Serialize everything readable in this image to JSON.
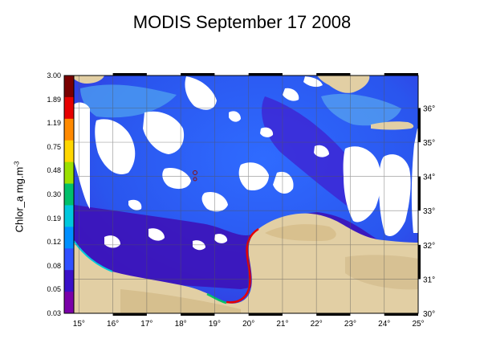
{
  "title": "MODIS September 17 2008",
  "colorbar": {
    "label": "Chlor_a mg.m",
    "label_exponent": "-3",
    "ticks": [
      "3.00",
      "1.89",
      "1.19",
      "0.75",
      "0.48",
      "0.30",
      "0.19",
      "0.12",
      "0.08",
      "0.05",
      "0.03"
    ],
    "colors": [
      "#7a0000",
      "#e60000",
      "#ff8a00",
      "#ffd700",
      "#9be000",
      "#00c06a",
      "#00c8dd",
      "#0090ff",
      "#3050ff",
      "#3a10c8",
      "#7a00a8"
    ]
  },
  "map": {
    "lon_labels": [
      "15",
      "16",
      "17",
      "18",
      "19",
      "20",
      "21",
      "22",
      "23",
      "24",
      "25"
    ],
    "lat_labels": [
      "36",
      "35",
      "34",
      "33",
      "32",
      "31",
      "30"
    ],
    "lon_range": [
      14.85,
      25.0
    ],
    "lat_range": [
      30.0,
      36.95
    ],
    "degree_symbol": "°",
    "colors": {
      "land": "#e2cfa4",
      "land_dark": "#c9ad75",
      "sea_low": "#3a10c8",
      "sea_mid": "#2f6bff",
      "sea_light": "#57a6f0",
      "coastal_high": "#e60000",
      "cloud": "#ffffff",
      "grid": "#555555"
    }
  }
}
